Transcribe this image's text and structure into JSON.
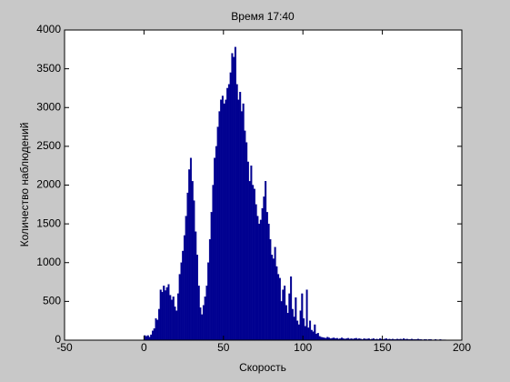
{
  "chart_data": {
    "type": "histogram",
    "title": "Время 17:40",
    "x_label": "Скорость",
    "y_label": "Количество наблюдений",
    "color": "#000090",
    "bins": [
      0,
      1,
      2,
      3,
      4,
      5,
      6,
      7,
      8,
      9,
      10,
      11,
      12,
      13,
      14,
      15,
      16,
      17,
      18,
      19,
      20,
      21,
      22,
      23,
      24,
      25,
      26,
      27,
      28,
      29,
      30,
      31,
      32,
      33,
      34,
      35,
      36,
      37,
      38,
      39,
      40,
      41,
      42,
      43,
      44,
      45,
      46,
      47,
      48,
      49,
      50,
      51,
      52,
      53,
      54,
      55,
      56,
      57,
      58,
      59,
      60,
      61,
      62,
      63,
      64,
      65,
      66,
      67,
      68,
      69,
      70,
      71,
      72,
      73,
      74,
      75,
      76,
      77,
      78,
      79,
      80,
      81,
      82,
      83,
      84,
      85,
      86,
      87,
      88,
      89,
      90,
      91,
      92,
      93,
      94,
      95,
      96,
      97,
      98,
      99,
      100,
      101,
      102,
      103,
      104,
      105,
      106,
      107,
      108,
      109,
      110,
      111,
      112,
      113,
      114,
      115,
      116,
      117,
      118,
      119,
      120,
      121,
      122,
      123,
      124,
      125,
      126,
      127,
      128,
      129,
      130,
      131,
      132,
      133,
      134,
      135,
      136,
      137,
      138,
      139,
      140,
      141,
      142,
      143,
      144,
      145,
      146,
      147,
      148,
      149,
      150,
      151,
      152,
      153,
      154,
      155,
      156,
      157,
      158,
      159,
      160,
      161,
      162,
      163,
      164,
      165,
      166,
      167,
      168,
      169,
      170,
      171,
      172,
      173,
      174,
      175,
      176,
      177,
      178,
      179,
      180,
      181,
      182,
      183,
      184,
      185,
      186,
      187,
      188,
      189,
      190
    ],
    "counts": [
      60,
      50,
      60,
      40,
      70,
      120,
      150,
      280,
      260,
      400,
      650,
      620,
      700,
      640,
      680,
      720,
      580,
      520,
      560,
      430,
      380,
      600,
      850,
      1000,
      1150,
      1350,
      1600,
      1900,
      2200,
      2350,
      2050,
      1800,
      1400,
      1100,
      700,
      420,
      330,
      450,
      560,
      700,
      1000,
      1300,
      1650,
      2000,
      2350,
      2500,
      2750,
      2950,
      3100,
      3150,
      3050,
      3100,
      3250,
      3300,
      3450,
      3700,
      3650,
      3780,
      3300,
      3100,
      3200,
      2950,
      3050,
      2700,
      2550,
      2300,
      2050,
      2250,
      2000,
      1950,
      1750,
      1600,
      1500,
      1550,
      1700,
      1850,
      2050,
      1650,
      1500,
      1300,
      1100,
      1050,
      1200,
      950,
      850,
      800,
      500,
      650,
      700,
      450,
      350,
      600,
      820,
      400,
      300,
      550,
      250,
      200,
      380,
      600,
      280,
      180,
      650,
      160,
      250,
      130,
      110,
      200,
      80,
      90,
      50,
      40,
      35,
      30,
      25,
      40,
      30,
      20,
      25,
      30,
      20,
      25,
      15,
      20,
      30,
      20,
      15,
      20,
      25,
      15,
      20,
      15,
      20,
      25,
      15,
      20,
      15,
      10,
      20,
      15,
      15,
      20,
      10,
      15,
      20,
      10,
      15,
      10,
      20,
      15,
      10,
      15,
      20,
      10,
      15,
      10,
      15,
      10,
      10,
      15,
      10,
      15,
      10,
      20,
      10,
      15,
      10,
      10,
      15,
      10,
      10,
      10,
      15,
      10,
      10,
      5,
      10,
      10,
      5,
      10,
      10,
      5,
      5,
      10,
      5,
      5,
      10,
      5,
      5,
      5
    ],
    "xlim": [
      -50,
      200
    ],
    "xticks": [
      -50,
      0,
      50,
      100,
      150,
      200
    ],
    "ylim": [
      0,
      4000
    ],
    "yticks": [
      0,
      500,
      1000,
      1500,
      2000,
      2500,
      3000,
      3500,
      4000
    ]
  }
}
